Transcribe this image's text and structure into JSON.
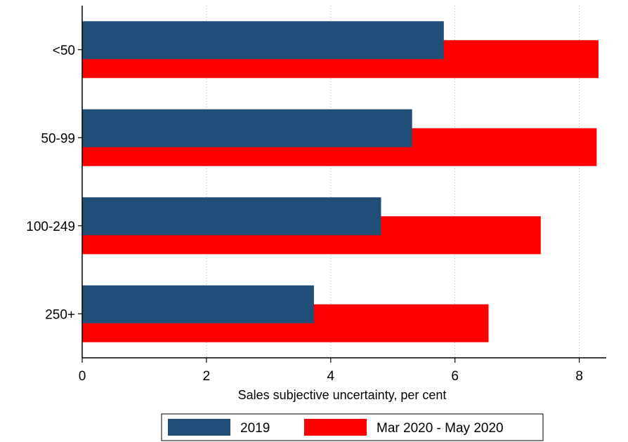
{
  "chart_data": {
    "type": "bar",
    "orientation": "horizontal",
    "categories": [
      "<50",
      "50-99",
      "100-249",
      "250+"
    ],
    "series": [
      {
        "name": "2019",
        "values": [
          5.82,
          5.31,
          4.81,
          3.73
        ]
      },
      {
        "name": "Mar 2020 - May 2020",
        "values": [
          8.31,
          8.28,
          7.38,
          6.54
        ]
      }
    ],
    "xlabel": "Sales subjective uncertainty, per cent",
    "ylabel": "",
    "xlim": [
      0,
      8.4
    ],
    "xticks": [
      "0",
      "2",
      "4",
      "6",
      "8"
    ],
    "grid": "vertical-dotted",
    "legend_position": "bottom"
  },
  "colors": {
    "series_2019": "#1f4e79",
    "series_2020": "#ff0000",
    "axis": "#000000",
    "grid": "#b0b0b0"
  }
}
